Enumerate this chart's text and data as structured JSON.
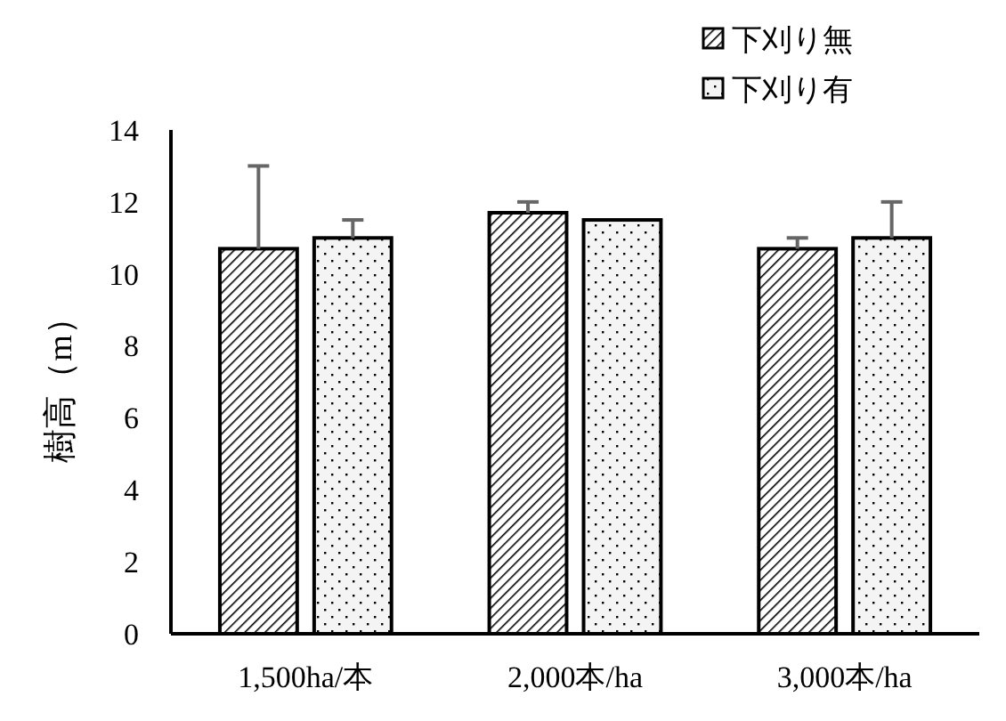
{
  "chart_data": {
    "type": "bar",
    "ylabel": "樹高（m）",
    "categories": [
      "1,500ha/本",
      "2,000本/ha",
      "3,000本/ha"
    ],
    "series": [
      {
        "name": "下刈り無",
        "color": "#000000",
        "values": [
          10.7,
          11.7,
          10.7
        ],
        "errors": [
          [
            10.7,
            13.0
          ],
          [
            11.7,
            12.0
          ],
          [
            10.7,
            11.0
          ]
        ]
      },
      {
        "name": "下刈り有",
        "color": "#000000",
        "values": [
          11.0,
          11.5,
          11.0
        ],
        "errors": [
          [
            11.0,
            11.5
          ],
          null,
          [
            11.0,
            12.0
          ]
        ]
      }
    ],
    "ylim": [
      0,
      14
    ],
    "yticks": [
      0,
      2,
      4,
      6,
      8,
      10,
      12,
      14
    ],
    "grid": false,
    "legend": "top right"
  }
}
